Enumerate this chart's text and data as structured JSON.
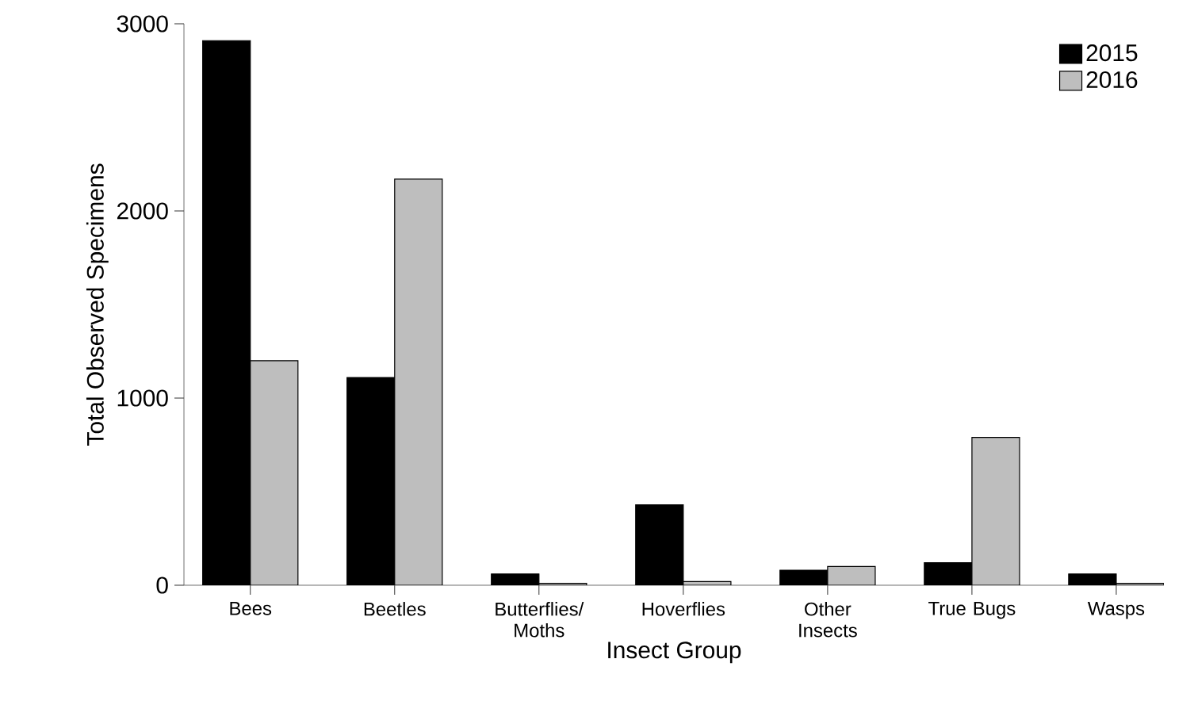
{
  "chart_data": {
    "type": "bar",
    "xlabel": "Insect Group",
    "ylabel": "Total Observed Specimens",
    "categories": [
      "Bees",
      "Beetles",
      "Butterflies/ Moths",
      "Hoverflies",
      "Other Insects",
      "True Bugs",
      "Wasps"
    ],
    "series": [
      {
        "name": "2015",
        "color": "#000000",
        "values": [
          2910,
          1110,
          60,
          430,
          80,
          120,
          60
        ]
      },
      {
        "name": "2016",
        "color": "#bebebe",
        "values": [
          1200,
          2170,
          10,
          20,
          100,
          790,
          10
        ]
      }
    ],
    "ylim": [
      0,
      3000
    ],
    "yticks": [
      0,
      1000,
      2000,
      3000
    ],
    "legend": "top right"
  }
}
